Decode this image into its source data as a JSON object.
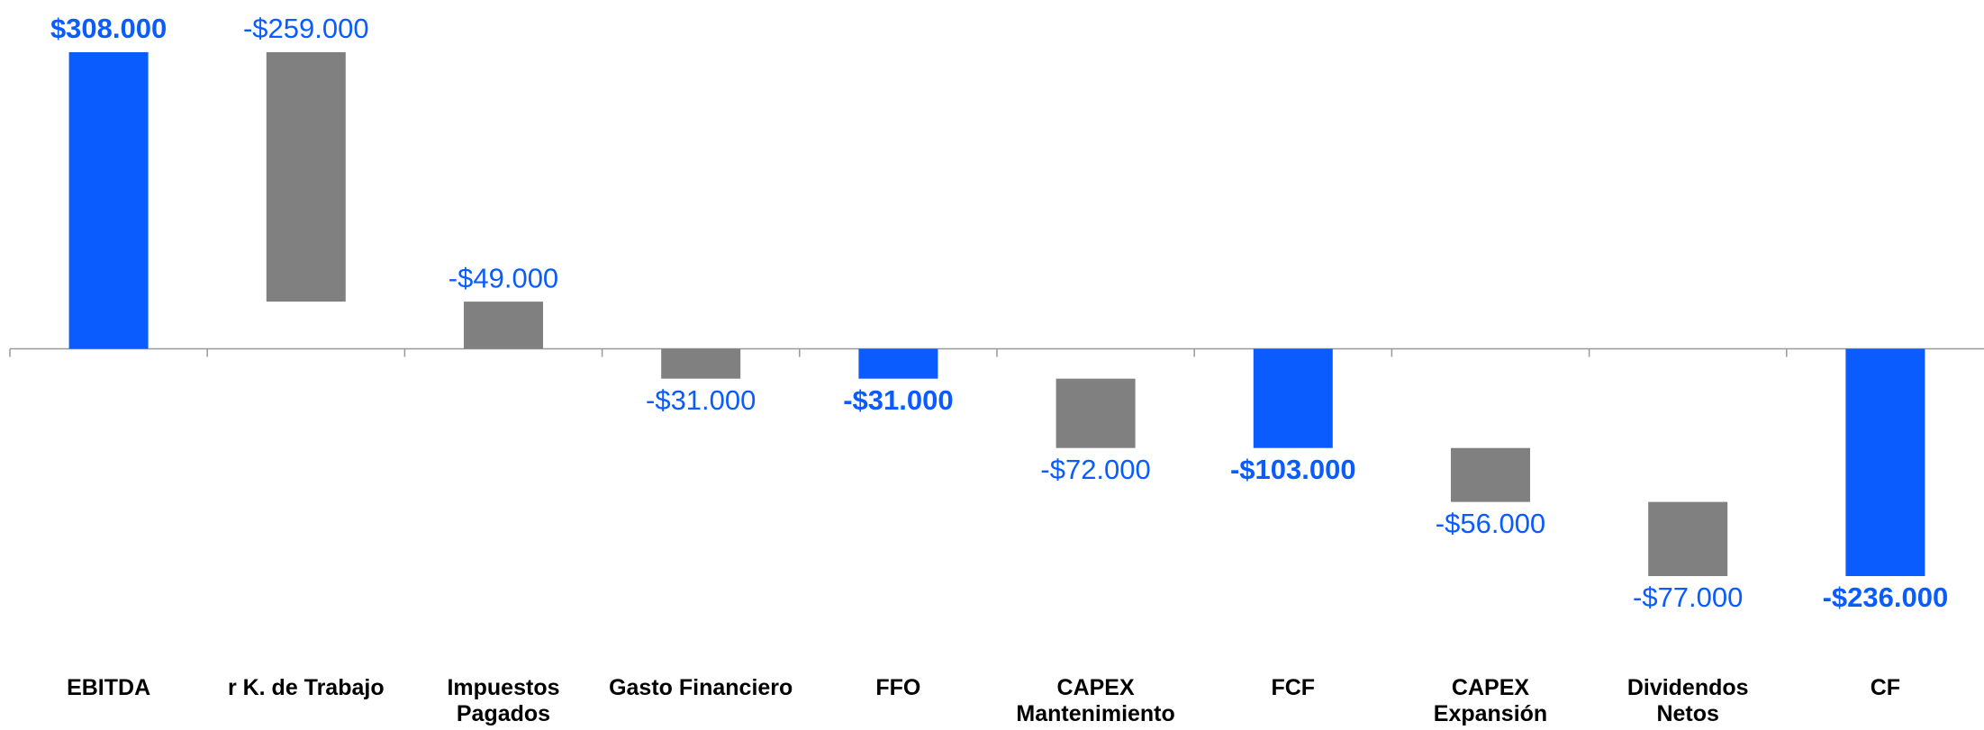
{
  "chart_data": {
    "type": "waterfall",
    "categories": [
      "EBITDA",
      "r K. de Trabajo",
      "Impuestos\nPagados",
      "Gasto Financiero",
      "FFO",
      "CAPEX\nMantenimiento",
      "FCF",
      "CAPEX\nExpansión",
      "Dividendos\nNetos",
      "CF"
    ],
    "values": [
      308000,
      -259000,
      -49000,
      -31000,
      -31000,
      -72000,
      -103000,
      -56000,
      -77000,
      -236000
    ],
    "value_labels": [
      "$308.000",
      "-$259.000",
      "-$49.000",
      "-$31.000",
      "-$31.000",
      "-$72.000",
      "-$103.000",
      "-$56.000",
      "-$77.000",
      "-$236.000"
    ],
    "is_total": [
      true,
      false,
      false,
      false,
      true,
      false,
      true,
      false,
      false,
      true
    ],
    "total_color": "#0a5cff",
    "step_color": "#808080",
    "label_color": "#0a5cff"
  }
}
